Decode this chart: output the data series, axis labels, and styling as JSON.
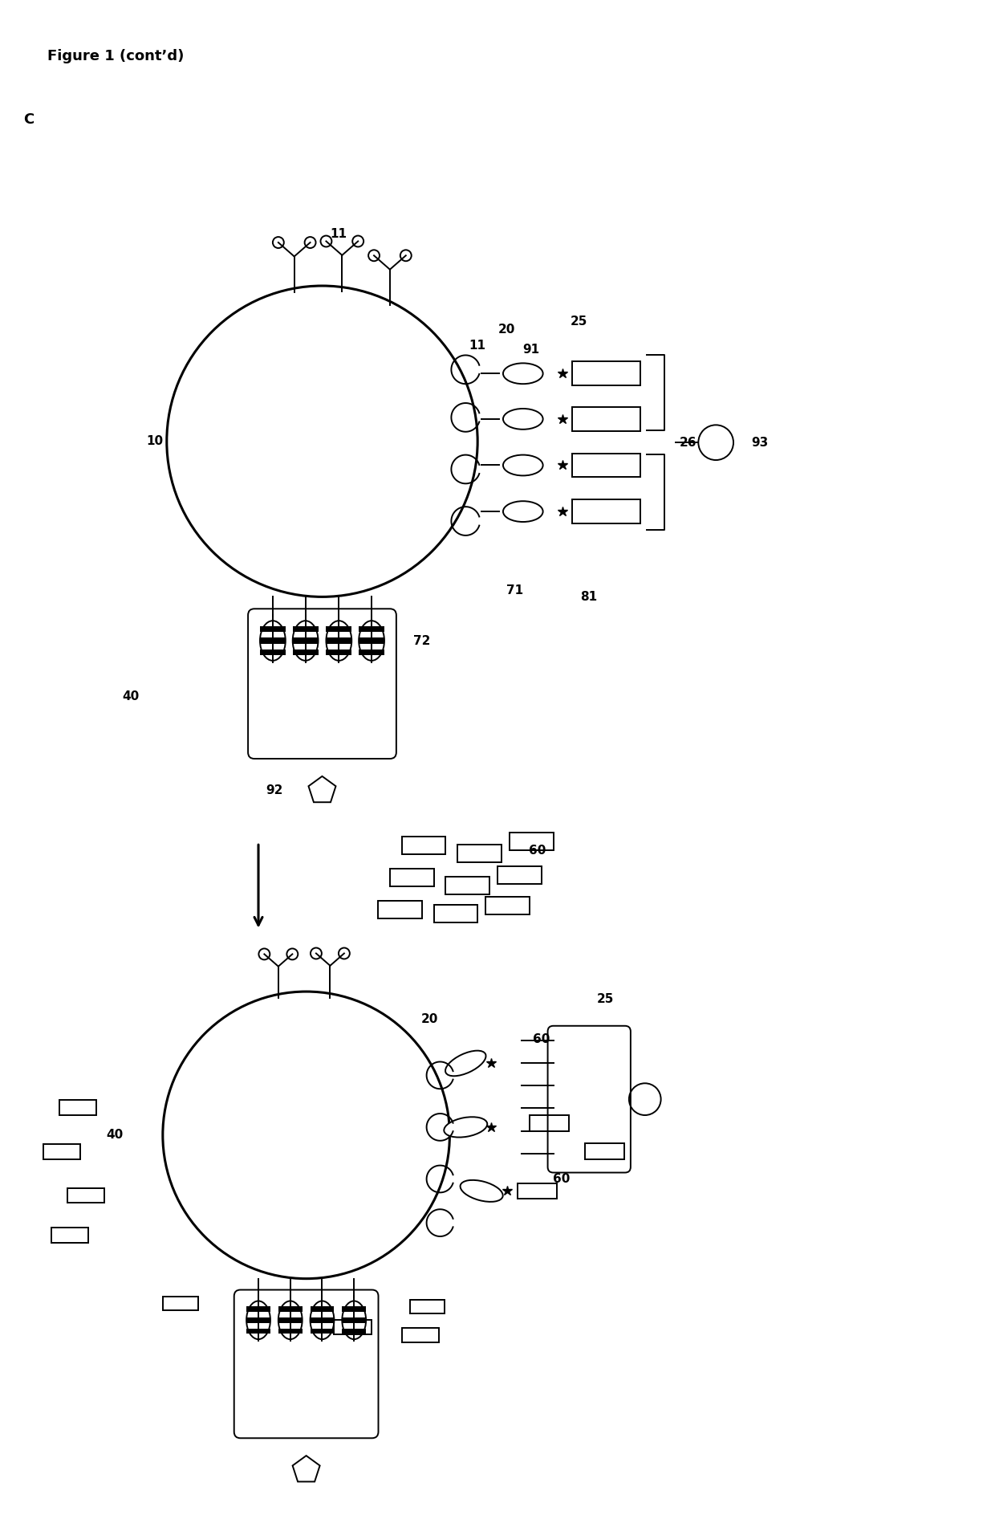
{
  "title": "Figure 1 (cont’d)",
  "panel_label": "C",
  "bg_color": "#ffffff",
  "line_color": "#000000",
  "fig_width": 12.4,
  "fig_height": 18.97
}
